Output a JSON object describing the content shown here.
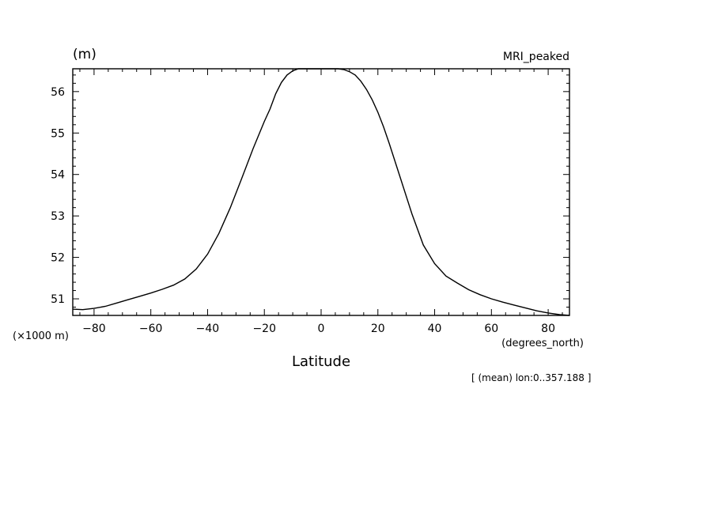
{
  "chart_data": {
    "type": "line",
    "title": "MRI_peaked",
    "ylabel_unit": "(m)",
    "y_scale_label": "(×1000 m)",
    "xlabel": "Latitude",
    "x_unit": "(degrees_north)",
    "annotation": "[ (mean) lon:0..357.188 ]",
    "xlim": [
      -87.5,
      87.5
    ],
    "ylim": [
      50.6,
      56.55
    ],
    "x_ticks": [
      -80,
      -60,
      -40,
      -20,
      0,
      20,
      40,
      60,
      80
    ],
    "x_tick_labels": [
      "-80",
      "-60",
      "-40",
      "-20",
      "0",
      "20",
      "40",
      "60",
      "80"
    ],
    "y_ticks": [
      51,
      52,
      53,
      54,
      55,
      56
    ],
    "y_tick_labels": [
      "51",
      "52",
      "53",
      "54",
      "55",
      "56"
    ],
    "series": [
      {
        "x": [
          -87.5,
          -84,
          -80,
          -76,
          -72,
          -68,
          -64,
          -60,
          -56,
          -52,
          -48,
          -44,
          -40,
          -36,
          -32,
          -28,
          -24,
          -20,
          -18,
          -16,
          -14,
          -12,
          -10,
          -8,
          -6,
          -4,
          -2,
          0,
          2,
          4,
          6,
          8,
          10,
          12,
          14,
          16,
          18,
          20,
          22,
          24,
          28,
          32,
          36,
          40,
          44,
          48,
          52,
          56,
          60,
          64,
          68,
          72,
          76,
          80,
          84,
          87.5
        ],
        "y": [
          50.75,
          50.74,
          50.77,
          50.82,
          50.9,
          50.98,
          51.06,
          51.14,
          51.23,
          51.33,
          51.48,
          51.72,
          52.08,
          52.58,
          53.2,
          53.9,
          54.62,
          55.28,
          55.58,
          55.95,
          56.22,
          56.4,
          56.5,
          56.55,
          56.55,
          56.55,
          56.55,
          56.55,
          56.55,
          56.55,
          56.55,
          56.53,
          56.48,
          56.4,
          56.25,
          56.05,
          55.8,
          55.5,
          55.15,
          54.75,
          53.9,
          53.05,
          52.3,
          51.85,
          51.55,
          51.38,
          51.22,
          51.1,
          51.0,
          50.92,
          50.85,
          50.78,
          50.71,
          50.66,
          50.62,
          50.6
        ]
      }
    ]
  }
}
